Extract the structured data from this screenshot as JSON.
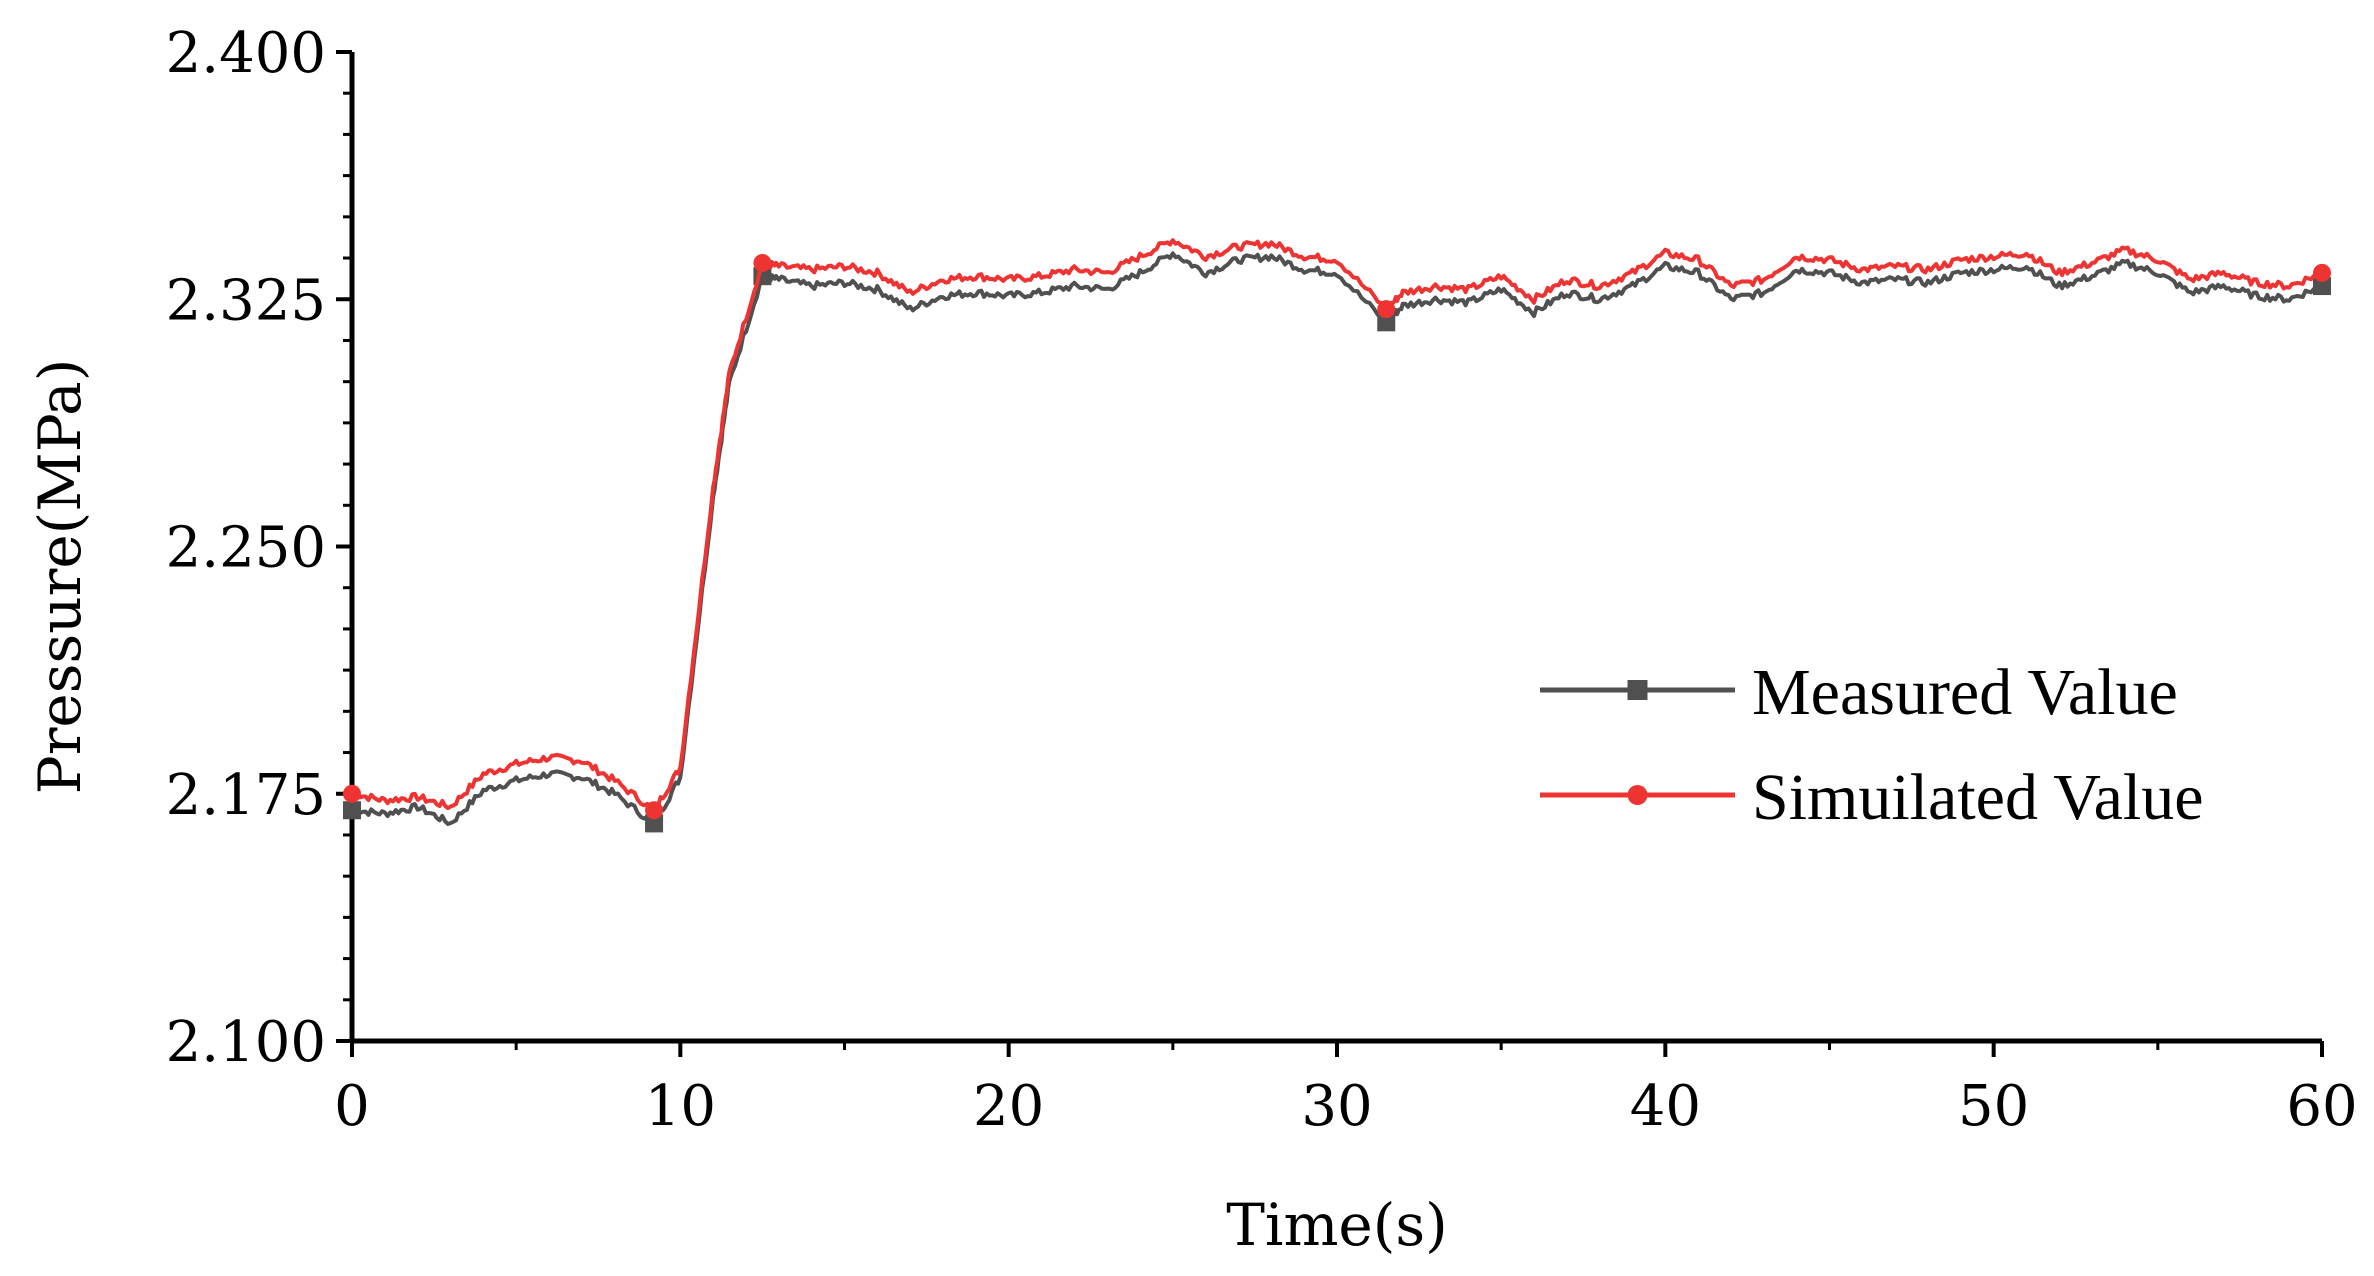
{
  "chart_data": {
    "type": "line",
    "title": "",
    "xlabel": "Time(s)",
    "ylabel": "Pressure(MPa)",
    "xlim": [
      0,
      60
    ],
    "ylim": [
      2.1,
      2.4
    ],
    "grid": false,
    "legend_position": "lower-right",
    "x_ticks": [
      0,
      10,
      20,
      30,
      40,
      50,
      60
    ],
    "x_tick_labels": [
      "0",
      "10",
      "20",
      "30",
      "40",
      "50",
      "60"
    ],
    "y_ticks": [
      2.1,
      2.175,
      2.25,
      2.325,
      2.4
    ],
    "y_tick_labels": [
      "2.100",
      "2.175",
      "2.250",
      "2.325",
      "2.400"
    ],
    "x": [
      0,
      1,
      2,
      3,
      4,
      5,
      6,
      7,
      8,
      9.2,
      10,
      11,
      11.5,
      12.5,
      13,
      14,
      15,
      16,
      17,
      18,
      19,
      20,
      21,
      22,
      23,
      24,
      25,
      26,
      27,
      28,
      29,
      30,
      31.5,
      32,
      33,
      34,
      35,
      36,
      37,
      38,
      39,
      40,
      41,
      42,
      43,
      44,
      45,
      46,
      47,
      48,
      49,
      50,
      51,
      52,
      53,
      54,
      55,
      56,
      57,
      58,
      59,
      60
    ],
    "series": [
      {
        "name": "Measured Value",
        "color": "#505050",
        "marker": "square",
        "values": [
          2.17,
          2.169,
          2.171,
          2.166,
          2.176,
          2.179,
          2.181,
          2.18,
          2.175,
          2.166,
          2.18,
          2.265,
          2.3,
          2.332,
          2.331,
          2.329,
          2.33,
          2.328,
          2.322,
          2.326,
          2.327,
          2.326,
          2.327,
          2.329,
          2.328,
          2.333,
          2.339,
          2.333,
          2.337,
          2.338,
          2.334,
          2.333,
          2.318,
          2.323,
          2.325,
          2.324,
          2.328,
          2.321,
          2.327,
          2.325,
          2.329,
          2.335,
          2.333,
          2.325,
          2.327,
          2.334,
          2.333,
          2.33,
          2.331,
          2.33,
          2.333,
          2.334,
          2.335,
          2.329,
          2.332,
          2.336,
          2.333,
          2.327,
          2.329,
          2.326,
          2.325,
          2.329
        ]
      },
      {
        "name": "Simuilated Value",
        "color": "#ee3333",
        "marker": "circle",
        "values": [
          2.175,
          2.173,
          2.174,
          2.171,
          2.181,
          2.184,
          2.186,
          2.185,
          2.179,
          2.17,
          2.183,
          2.268,
          2.303,
          2.336,
          2.335,
          2.334,
          2.335,
          2.333,
          2.327,
          2.331,
          2.332,
          2.331,
          2.332,
          2.334,
          2.333,
          2.338,
          2.343,
          2.338,
          2.341,
          2.342,
          2.338,
          2.337,
          2.322,
          2.327,
          2.329,
          2.328,
          2.332,
          2.325,
          2.331,
          2.329,
          2.333,
          2.339,
          2.337,
          2.329,
          2.331,
          2.338,
          2.337,
          2.334,
          2.335,
          2.334,
          2.337,
          2.338,
          2.339,
          2.333,
          2.336,
          2.34,
          2.337,
          2.331,
          2.333,
          2.33,
          2.329,
          2.333
        ]
      }
    ]
  }
}
